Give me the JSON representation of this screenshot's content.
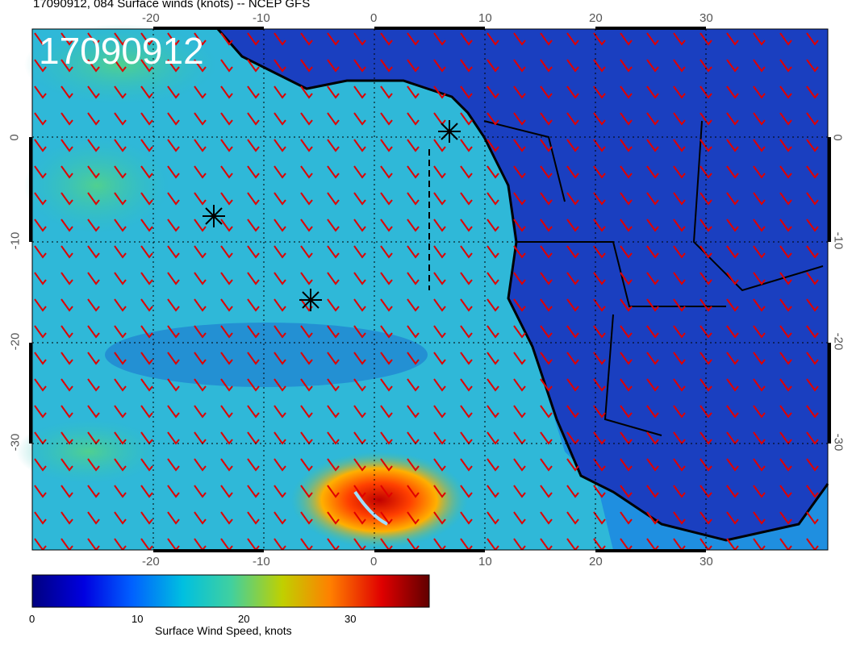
{
  "header": {
    "title": "17090912, 084 Surface winds (knots) -- NCEP GFS",
    "datestamp": "17090912"
  },
  "map": {
    "lon_ticks_top": [
      "-20",
      "-10",
      "0",
      "10",
      "20",
      "30"
    ],
    "lon_ticks_bottom": [
      "-20",
      "-10",
      "0",
      "10",
      "20",
      "30"
    ],
    "lat_ticks_left": [
      "0",
      "-10",
      "-20",
      "-30"
    ],
    "lat_ticks_right": [
      "0",
      "-10",
      "-20",
      "-30"
    ],
    "markers": [
      "asterisk",
      "asterisk",
      "asterisk"
    ],
    "barb_color": "#e00000",
    "coast_color": "#000000"
  },
  "colorbar": {
    "title": "Surface Wind Speed, knots",
    "ticks": [
      "0",
      "10",
      "20",
      "30"
    ],
    "stops": [
      "#000080",
      "#0000e0",
      "#0060ff",
      "#00c0e0",
      "#40d0a0",
      "#c0d000",
      "#ff8000",
      "#e00000",
      "#600000"
    ]
  }
}
